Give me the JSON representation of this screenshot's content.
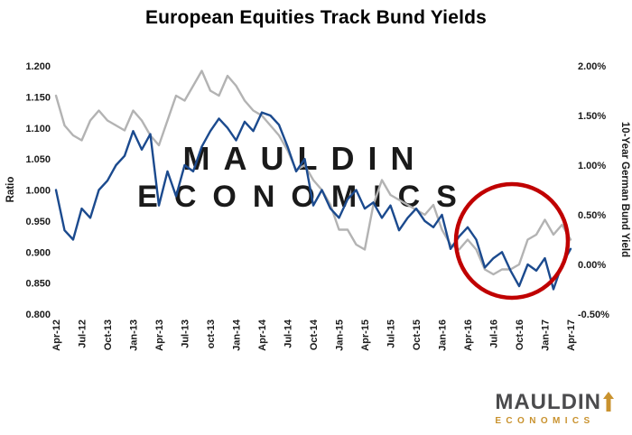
{
  "chart_data": {
    "type": "line",
    "title": "European Equities Track Bund Yields",
    "x_tick_labels": [
      "Apr-12",
      "Jul-12",
      "Oct-13",
      "Jan-13",
      "Apr-13",
      "Jul-13",
      "oct-13",
      "Jan-14",
      "Apr-14",
      "Jul-14",
      "Oct-14",
      "Jan-15",
      "Apr-15",
      "Jul-15",
      "Oct-15",
      "Jan-16",
      "Apr-16",
      "Jul-16",
      "Oct-16",
      "Jan-17",
      "Apr-17"
    ],
    "tick_every": 3,
    "left_axis": {
      "label": "Ratio",
      "ticks": [
        "1.200",
        "1.150",
        "1.100",
        "1.050",
        "1.000",
        "0.950",
        "0.900",
        "0.850",
        "0.800"
      ],
      "min": 0.8,
      "max": 1.2
    },
    "right_axis": {
      "label": "10-Year German Bund Yield",
      "ticks": [
        "2.00%",
        "1.50%",
        "1.00%",
        "0.50%",
        "0.00%",
        "-0.50%"
      ],
      "min": -0.5,
      "max": 2.0
    },
    "series": [
      {
        "name": "10-Year German Bund Yield",
        "axis": "right",
        "color": "#b3b3b3",
        "values": [
          1.7,
          1.4,
          1.3,
          1.25,
          1.45,
          1.55,
          1.45,
          1.4,
          1.35,
          1.55,
          1.45,
          1.3,
          1.2,
          1.45,
          1.7,
          1.65,
          1.8,
          1.95,
          1.75,
          1.7,
          1.9,
          1.8,
          1.65,
          1.55,
          1.5,
          1.4,
          1.3,
          1.15,
          0.95,
          1.0,
          0.85,
          0.75,
          0.6,
          0.35,
          0.35,
          0.2,
          0.15,
          0.6,
          0.85,
          0.7,
          0.65,
          0.6,
          0.55,
          0.5,
          0.6,
          0.35,
          0.2,
          0.15,
          0.25,
          0.15,
          -0.05,
          -0.1,
          -0.05,
          -0.05,
          0.0,
          0.25,
          0.3,
          0.45,
          0.3,
          0.4,
          0.25
        ]
      },
      {
        "name": "Ratio",
        "axis": "left",
        "color": "#1b4a8e",
        "values": [
          1.0,
          0.935,
          0.92,
          0.97,
          0.955,
          1.0,
          1.015,
          1.04,
          1.055,
          1.095,
          1.065,
          1.09,
          0.975,
          1.03,
          0.99,
          1.04,
          1.03,
          1.07,
          1.095,
          1.115,
          1.1,
          1.08,
          1.11,
          1.095,
          1.125,
          1.12,
          1.105,
          1.07,
          1.03,
          1.05,
          0.975,
          1.0,
          0.97,
          0.955,
          0.985,
          1.0,
          0.97,
          0.98,
          0.955,
          0.975,
          0.935,
          0.955,
          0.97,
          0.95,
          0.94,
          0.96,
          0.905,
          0.925,
          0.94,
          0.92,
          0.875,
          0.89,
          0.9,
          0.87,
          0.845,
          0.88,
          0.87,
          0.89,
          0.84,
          0.88,
          0.905
        ]
      }
    ],
    "annotation": {
      "shape": "circle",
      "color": "#c00000",
      "x_range": [
        "Jun-16",
        "Apr-17"
      ]
    },
    "grid": false,
    "legend": "none"
  },
  "watermark": {
    "line1": "MAULDIN",
    "line2": "ECONOMICS",
    "color": "#d6d6d6"
  },
  "logo": {
    "name": "MAULDIN",
    "sub": "ECONOMICS",
    "accent": "#c9922e",
    "text_color": "#4b4b4d"
  }
}
